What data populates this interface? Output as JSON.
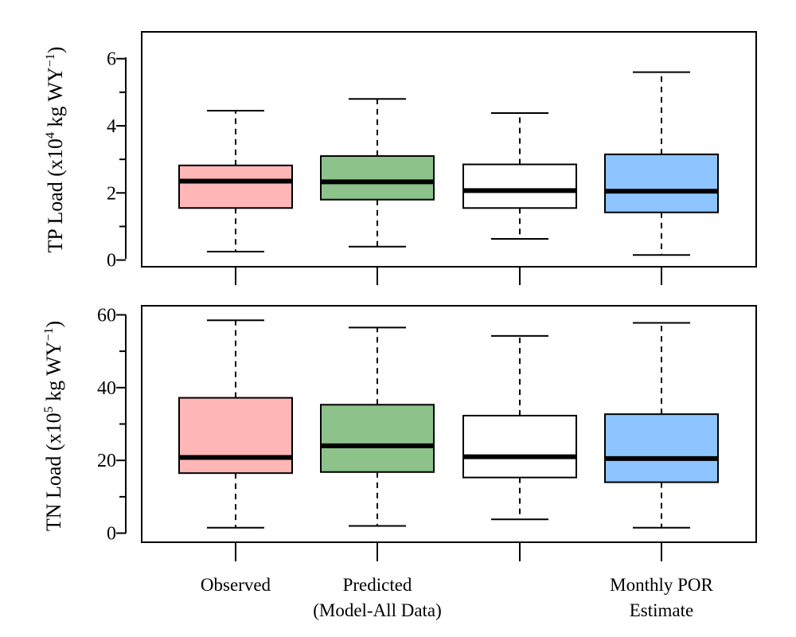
{
  "chart_data": [
    {
      "type": "boxplot",
      "ylabel": {
        "main": "TP Load (x10",
        "exp": "4",
        "unit": " kg WY",
        "unit_exp": "−1",
        "close": ")"
      },
      "ylim": [
        -0.2,
        6.8
      ],
      "yticks": [
        0,
        2,
        4,
        6
      ],
      "tick_labels": [
        "0",
        "2",
        "4",
        "6"
      ],
      "boxes": [
        {
          "min": 0.25,
          "q1": 1.55,
          "median": 2.35,
          "q3": 2.82,
          "max": 4.45
        },
        {
          "min": 0.4,
          "q1": 1.8,
          "median": 2.33,
          "q3": 3.1,
          "max": 4.8
        },
        {
          "min": 0.63,
          "q1": 1.55,
          "median": 2.07,
          "q3": 2.85,
          "max": 4.38
        },
        {
          "min": 0.15,
          "q1": 1.42,
          "median": 2.05,
          "q3": 3.15,
          "max": 5.6
        }
      ]
    },
    {
      "type": "boxplot",
      "ylabel": {
        "main": "TN Load (x10",
        "exp": "5",
        "unit": " kg WY",
        "unit_exp": "−1",
        "close": ")"
      },
      "ylim": [
        -2.5,
        62.5
      ],
      "yticks": [
        0,
        20,
        40,
        60
      ],
      "tick_labels": [
        "0",
        "20",
        "40",
        "60"
      ],
      "boxes": [
        {
          "min": 1.5,
          "q1": 16.5,
          "median": 20.8,
          "q3": 37.2,
          "max": 58.5
        },
        {
          "min": 2,
          "q1": 16.8,
          "median": 24,
          "q3": 35.3,
          "max": 56.5
        },
        {
          "min": 3.8,
          "q1": 15.3,
          "median": 21,
          "q3": 32.3,
          "max": 54.2
        },
        {
          "min": 1.5,
          "q1": 14,
          "median": 20.5,
          "q3": 32.7,
          "max": 57.8
        }
      ]
    }
  ],
  "categories": [
    {
      "lines": [
        "Observed"
      ],
      "color": "#ffb6b6"
    },
    {
      "lines": [
        "Predicted",
        "(Model-All Data)"
      ],
      "color": "#8dc28a"
    },
    {
      "lines": [],
      "color": "#ffffff"
    },
    {
      "lines": [
        "Monthly POR",
        "Estimate"
      ],
      "color": "#8ec4ff"
    }
  ]
}
